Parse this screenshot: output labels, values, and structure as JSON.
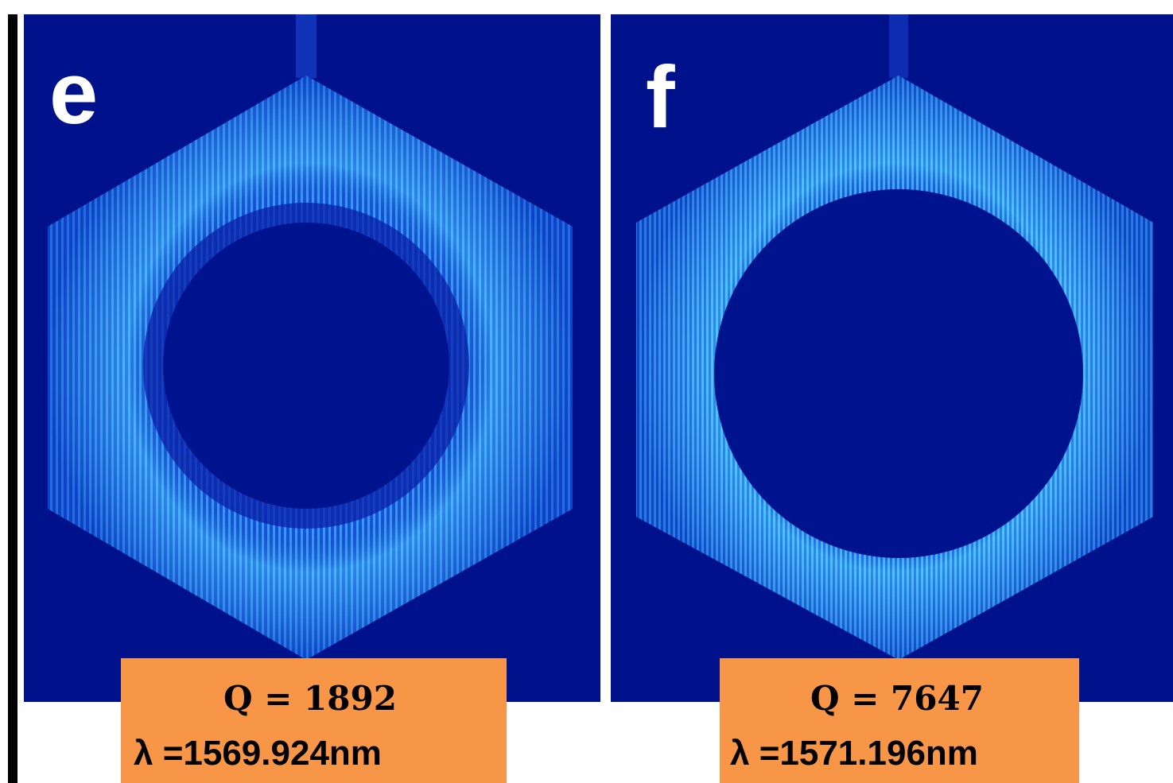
{
  "panels": [
    {
      "label": "e",
      "q": "Q = 1892",
      "wavelength": "λ =1569.924nm"
    },
    {
      "label": "f",
      "q": "Q = 7647",
      "wavelength": "λ =1571.196nm"
    }
  ]
}
